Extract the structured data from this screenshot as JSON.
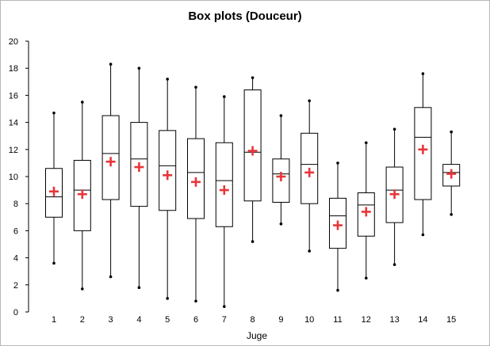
{
  "chart_data": {
    "type": "boxplot",
    "title": "Box plots (Douceur)",
    "xlabel": "Juge",
    "ylabel": "",
    "ylim": [
      0,
      20
    ],
    "yticks": [
      0,
      2,
      4,
      6,
      8,
      10,
      12,
      14,
      16,
      18,
      20
    ],
    "categories": [
      "1",
      "2",
      "3",
      "4",
      "5",
      "6",
      "7",
      "8",
      "9",
      "10",
      "11",
      "12",
      "13",
      "14",
      "15"
    ],
    "mean_marker_color": "#e8363b",
    "box_color": "#000000",
    "boxes": [
      {
        "min": 3.6,
        "q1": 7.0,
        "median": 8.5,
        "q3": 10.6,
        "max": 14.7,
        "mean": 8.9
      },
      {
        "min": 1.7,
        "q1": 6.0,
        "median": 9.0,
        "q3": 11.2,
        "max": 15.5,
        "mean": 8.7
      },
      {
        "min": 2.6,
        "q1": 8.3,
        "median": 11.7,
        "q3": 14.5,
        "max": 18.3,
        "mean": 11.1
      },
      {
        "min": 1.8,
        "q1": 7.8,
        "median": 11.3,
        "q3": 14.0,
        "max": 18.0,
        "mean": 10.7
      },
      {
        "min": 1.0,
        "q1": 7.5,
        "median": 10.8,
        "q3": 13.4,
        "max": 17.2,
        "mean": 10.1
      },
      {
        "min": 0.8,
        "q1": 6.9,
        "median": 10.3,
        "q3": 12.8,
        "max": 16.6,
        "mean": 9.6
      },
      {
        "min": 0.4,
        "q1": 6.3,
        "median": 9.7,
        "q3": 12.5,
        "max": 15.9,
        "mean": 9.0
      },
      {
        "min": 5.2,
        "q1": 8.2,
        "median": 11.8,
        "q3": 16.4,
        "max": 17.3,
        "mean": 11.9
      },
      {
        "min": 6.5,
        "q1": 8.1,
        "median": 10.2,
        "q3": 11.3,
        "max": 14.5,
        "mean": 10.0
      },
      {
        "min": 4.5,
        "q1": 8.0,
        "median": 10.9,
        "q3": 13.2,
        "max": 15.6,
        "mean": 10.3
      },
      {
        "min": 1.6,
        "q1": 4.7,
        "median": 7.1,
        "q3": 8.4,
        "max": 11.0,
        "mean": 6.4
      },
      {
        "min": 2.5,
        "q1": 5.6,
        "median": 7.9,
        "q3": 8.8,
        "max": 12.5,
        "mean": 7.4
      },
      {
        "min": 3.5,
        "q1": 6.6,
        "median": 9.0,
        "q3": 10.7,
        "max": 13.5,
        "mean": 8.7
      },
      {
        "min": 5.7,
        "q1": 8.3,
        "median": 12.9,
        "q3": 15.1,
        "max": 17.6,
        "mean": 12.0
      },
      {
        "min": 7.2,
        "q1": 9.3,
        "median": 10.3,
        "q3": 10.9,
        "max": 13.3,
        "mean": 10.2
      }
    ]
  }
}
